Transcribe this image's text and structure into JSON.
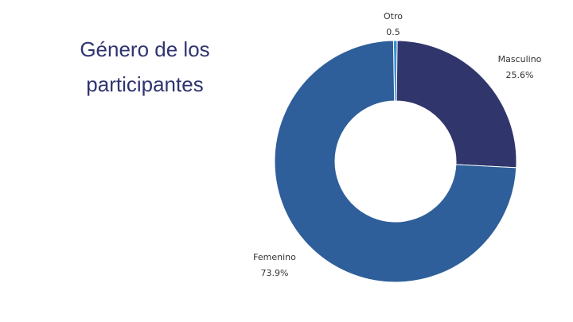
{
  "title_lines": [
    "Género de los",
    "participantes"
  ],
  "chart_data": {
    "type": "pie",
    "donut": true,
    "title": "Género de los participantes",
    "slices": [
      {
        "label": "Otro",
        "value": 0.5,
        "value_label": "0.5",
        "color": "#3a8fd0"
      },
      {
        "label": "Masculino",
        "value": 25.6,
        "value_label": "25.6%",
        "color": "#30356c"
      },
      {
        "label": "Femenino",
        "value": 73.9,
        "value_label": "73.9%",
        "color": "#2e5f9a"
      }
    ]
  }
}
